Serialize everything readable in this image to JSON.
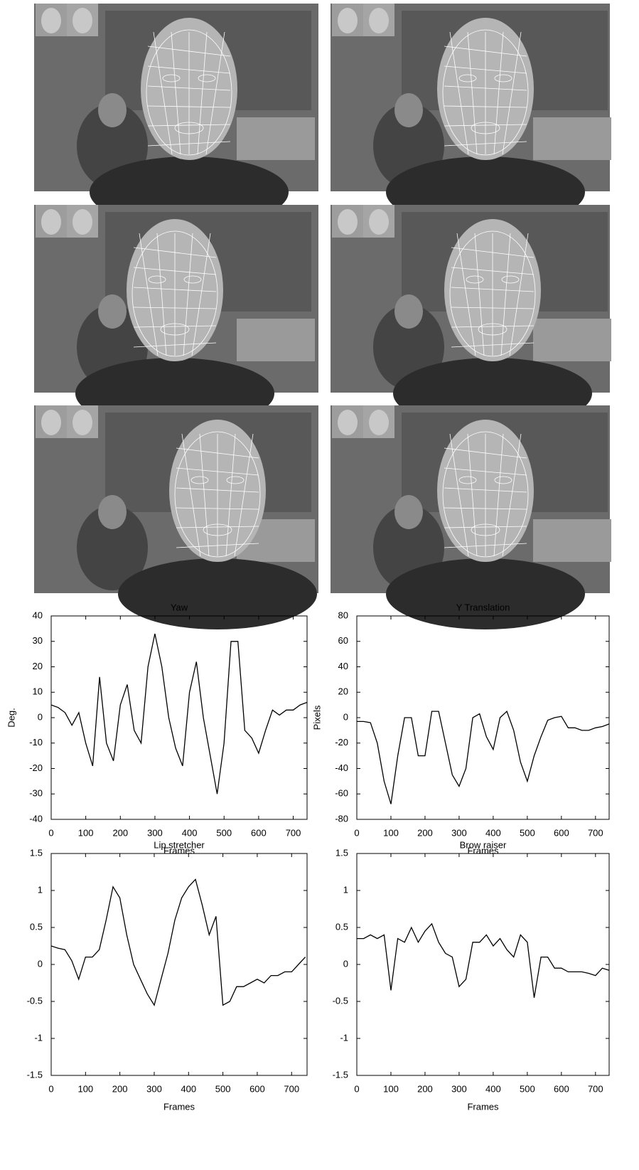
{
  "chart_data": [
    {
      "type": "line",
      "title": "Yaw",
      "xlabel": "Frames",
      "ylabel": "Deg.",
      "color": "#000000",
      "x": [
        0,
        20,
        40,
        60,
        80,
        100,
        120,
        140,
        160,
        180,
        200,
        220,
        240,
        260,
        280,
        300,
        320,
        340,
        360,
        380,
        400,
        420,
        440,
        460,
        480,
        500,
        520,
        540,
        560,
        580,
        600,
        620,
        640,
        660,
        680,
        700,
        720,
        740
      ],
      "values": [
        5,
        4,
        2,
        -3,
        2,
        -10,
        -19,
        16,
        -10,
        -17,
        5,
        13,
        -5,
        -10,
        20,
        33,
        20,
        0,
        -12,
        -19,
        10,
        22,
        0,
        -15,
        -30,
        -10,
        30,
        30,
        -5,
        -8,
        -14,
        -5,
        3,
        1,
        3,
        3,
        5,
        6
      ],
      "xlim": [
        0,
        740
      ],
      "ylim": [
        -40,
        40
      ],
      "xticks": [
        0,
        100,
        200,
        300,
        400,
        500,
        600,
        700
      ],
      "yticks": [
        -40,
        -30,
        -20,
        -10,
        0,
        10,
        20,
        30,
        40
      ]
    },
    {
      "type": "line",
      "title": "Y Translation",
      "xlabel": "Frames",
      "ylabel": "Pixels",
      "color": "#000000",
      "x": [
        0,
        20,
        40,
        60,
        80,
        100,
        120,
        140,
        160,
        180,
        200,
        220,
        240,
        260,
        280,
        300,
        320,
        340,
        360,
        380,
        400,
        420,
        440,
        460,
        480,
        500,
        520,
        540,
        560,
        580,
        600,
        620,
        640,
        660,
        680,
        700,
        720,
        740
      ],
      "values": [
        -3,
        -3,
        -4,
        -20,
        -50,
        -68,
        -30,
        0,
        0,
        -30,
        -30,
        5,
        5,
        -20,
        -45,
        -54,
        -40,
        0,
        3,
        -15,
        -25,
        0,
        5,
        -10,
        -35,
        -50,
        -30,
        -15,
        -2,
        0,
        1,
        -8,
        -8,
        -10,
        -10,
        -8,
        -7,
        -5
      ],
      "xlim": [
        0,
        740
      ],
      "ylim": [
        -80,
        80
      ],
      "xticks": [
        0,
        100,
        200,
        300,
        400,
        500,
        600,
        700
      ],
      "yticks": [
        -80,
        -60,
        -40,
        -20,
        0,
        20,
        40,
        60,
        80
      ]
    },
    {
      "type": "line",
      "title": "Lip stretcher",
      "xlabel": "Frames",
      "color": "#000000",
      "x": [
        0,
        20,
        40,
        60,
        80,
        100,
        120,
        140,
        160,
        180,
        200,
        220,
        240,
        260,
        280,
        300,
        320,
        340,
        360,
        380,
        400,
        420,
        440,
        460,
        480,
        500,
        520,
        540,
        560,
        580,
        600,
        620,
        640,
        660,
        680,
        700,
        720,
        740
      ],
      "values": [
        0.25,
        0.22,
        0.2,
        0.05,
        -0.2,
        0.1,
        0.1,
        0.2,
        0.6,
        1.05,
        0.9,
        0.4,
        0,
        -0.2,
        -0.4,
        -0.55,
        -0.2,
        0.15,
        0.6,
        0.9,
        1.05,
        1.15,
        0.8,
        0.4,
        0.65,
        -0.55,
        -0.5,
        -0.3,
        -0.3,
        -0.25,
        -0.2,
        -0.25,
        -0.15,
        -0.15,
        -0.1,
        -0.1,
        0,
        0.1
      ],
      "xlim": [
        0,
        745
      ],
      "ylim": [
        -1.5,
        1.5
      ],
      "xticks": [
        0,
        100,
        200,
        300,
        400,
        500,
        600,
        700
      ],
      "yticks": [
        -1.5,
        -1,
        -0.5,
        0,
        0.5,
        1,
        1.5
      ]
    },
    {
      "type": "line",
      "title": "Brow raiser",
      "xlabel": "Frames",
      "color": "#000000",
      "x": [
        0,
        20,
        40,
        60,
        80,
        100,
        120,
        140,
        160,
        180,
        200,
        220,
        240,
        260,
        280,
        300,
        320,
        340,
        360,
        380,
        400,
        420,
        440,
        460,
        480,
        500,
        520,
        540,
        560,
        580,
        600,
        620,
        640,
        660,
        680,
        700,
        720,
        740
      ],
      "values": [
        0.35,
        0.35,
        0.4,
        0.35,
        0.4,
        -0.35,
        0.35,
        0.3,
        0.5,
        0.3,
        0.45,
        0.55,
        0.3,
        0.15,
        0.1,
        -0.3,
        -0.2,
        0.3,
        0.3,
        0.4,
        0.25,
        0.35,
        0.2,
        0.1,
        0.4,
        0.3,
        -0.45,
        0.1,
        0.1,
        -0.05,
        -0.05,
        -0.1,
        -0.1,
        -0.1,
        -0.12,
        -0.15,
        -0.05,
        -0.08
      ],
      "xlim": [
        0,
        740
      ],
      "ylim": [
        -1.5,
        1.5
      ],
      "xticks": [
        0,
        100,
        200,
        300,
        400,
        500,
        600,
        700
      ],
      "yticks": [
        -1.5,
        -1,
        -0.5,
        0,
        0.5,
        1,
        1.5
      ]
    }
  ]
}
